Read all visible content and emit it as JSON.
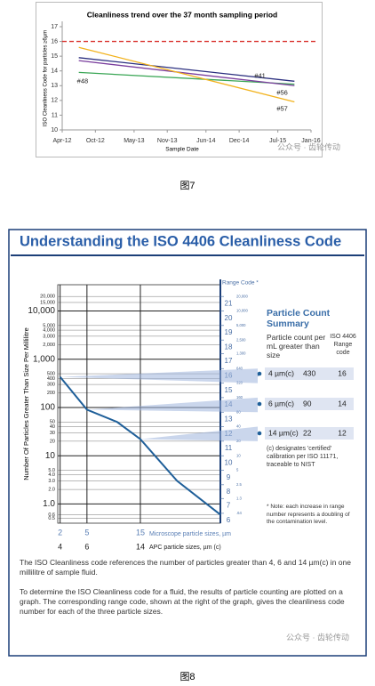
{
  "chart_data": [
    {
      "type": "line",
      "title": "Cleanliness trend over the 37 month sampling period",
      "x_label": "Sample Date",
      "y_label": "ISO Cleanliness Code for particles ≥6µm",
      "xlim": [
        "Apr-12",
        "Jan-16"
      ],
      "xticks": [
        "Apr-12",
        "Oct-12",
        "May-13",
        "Nov-13",
        "Jun-14",
        "Dec-14",
        "Jul-15",
        "Jan-16"
      ],
      "ylim": [
        10,
        17
      ],
      "yticks": [
        10,
        11,
        12,
        13,
        14,
        15,
        16,
        17
      ],
      "threshold": 16,
      "threshold_color": "#d9302c",
      "x": [
        "Jul-12",
        "Oct-15"
      ],
      "series": [
        {
          "name": "#48",
          "color": "#3aa655",
          "values": [
            13.9,
            13.1
          ]
        },
        {
          "name": "#41",
          "color": "#2b2f7f",
          "values": [
            14.9,
            13.3
          ]
        },
        {
          "name": "#56",
          "color": "#7b3f9e",
          "values": [
            14.7,
            13.0
          ]
        },
        {
          "name": "#57",
          "color": "#f2b21c",
          "values": [
            15.6,
            11.9
          ]
        }
      ]
    },
    {
      "type": "log-line",
      "y_label": "Number Of Particles Greater Than Size Per Millilitre",
      "x_label": "Microscope particle sizes, µm",
      "x2_label": "APC particle sizes, µm (c)",
      "xscale": "sqrt",
      "xlim": [
        1.8,
        40
      ],
      "xticks": [
        2,
        5,
        15
      ],
      "x2ticks": [
        4,
        6,
        14
      ],
      "ylog": true,
      "ylim": [
        0.4,
        35000
      ],
      "yticks": [
        {
          "value": 20000,
          "label": "20,000"
        },
        {
          "value": 15000,
          "label": "15,000"
        },
        {
          "value": 10000,
          "label": "10,000"
        },
        {
          "value": 5000,
          "label": "5,000"
        },
        {
          "value": 4000,
          "label": "4,000"
        },
        {
          "value": 3000,
          "label": "3,000"
        },
        {
          "value": 2000,
          "label": "2,000"
        },
        {
          "value": 1000,
          "label": "1,000"
        },
        500,
        400,
        300,
        200,
        100,
        50,
        40,
        30,
        20,
        10,
        {
          "value": 5,
          "label": "5.0"
        },
        {
          "value": 4,
          "label": "4.0"
        },
        {
          "value": 3,
          "label": "3.0"
        },
        {
          "value": 2,
          "label": "2.0"
        },
        {
          "value": 1,
          "label": "1.0"
        },
        0.6,
        0.5
      ],
      "range_code_title": "Range Code *",
      "range_codes": [
        21,
        20,
        19,
        18,
        17,
        16,
        15,
        14,
        13,
        12,
        11,
        10,
        9,
        8,
        7,
        6
      ],
      "range_boundaries": [
        {
          "value": 20000,
          "label": "20,000"
        },
        {
          "value": 10000,
          "label": "10,000"
        },
        {
          "value": 5000,
          "label": "5,000"
        },
        {
          "value": 2500,
          "label": "2,500"
        },
        {
          "value": 1300,
          "label": "1,300"
        },
        640,
        320,
        160,
        80,
        40,
        20,
        10,
        5,
        2.5,
        1.3,
        {
          "value": 0.64,
          "label": ".64"
        }
      ],
      "color": "#1f5f99",
      "x": [
        2,
        5,
        10,
        15,
        25,
        40
      ],
      "values": [
        430,
        90,
        50,
        22,
        3,
        0.6
      ]
    }
  ],
  "document": {
    "figure7_caption": "图7",
    "figure8_caption": "图8",
    "watermarks": [
      "公众号 · 齿轮传动",
      "公众号 · 齿轮传动"
    ],
    "title": "Understanding the ISO 4406 Cleanliness Code",
    "summary": {
      "title": "Particle Count Summary",
      "count_header": "Particle count per mL greater than size",
      "code_header": "ISO 4406 Range code",
      "rows": [
        [
          "4 µm(c)",
          430,
          16
        ],
        [
          "6 µm(c)",
          90,
          14
        ],
        [
          "14 µm(c)",
          22,
          12
        ]
      ]
    },
    "certified_note": "(c) designates 'certified' calibration per ISO 11171, traceable to NIST",
    "range_note": "* Note: each increase in range number represents a doubling of the contamination level.",
    "paragraphs": [
      "The ISO Cleanliness code references the number of particles greater than 4, 6 and 14 µm(c) in one millilitre of sample fluid.",
      "To determine the ISO Cleanliness code for a fluid, the results of particle counting are plotted on a graph. The corresponding range code, shown at the right of the graph, gives the cleanliness code number for each of the three particle sizes."
    ]
  }
}
